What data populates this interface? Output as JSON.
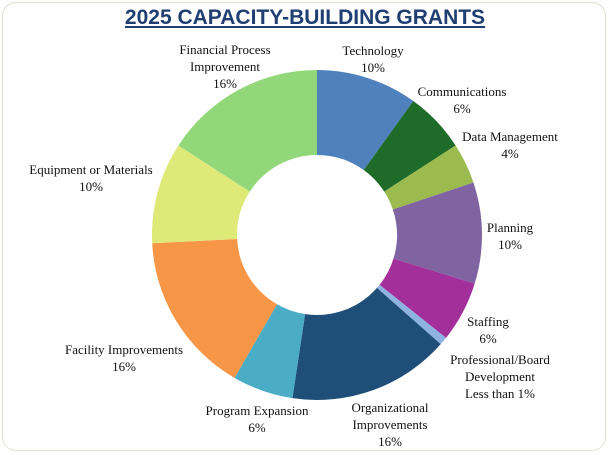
{
  "chart_data": {
    "type": "donut",
    "title": "2025 CAPACITY-BUILDING GRANTS",
    "categories": [
      "Technology",
      "Communications",
      "Data Management",
      "Planning",
      "Staffing",
      "Professional/Board Development",
      "Organizational Improvements",
      "Program Expansion",
      "Facility Improvements",
      "Equipment or Materials",
      "Financial Process Improvement"
    ],
    "values": [
      10,
      6,
      4,
      10,
      6,
      0.8,
      16,
      6,
      16,
      10,
      16
    ],
    "value_labels": [
      "10%",
      "6%",
      "4%",
      "10%",
      "6%",
      "Less than 1%",
      "16%",
      "6%",
      "16%",
      "10%",
      "16%"
    ],
    "colors": [
      "#4f81bd",
      "#1e6b2a",
      "#9bbb4f",
      "#8064a2",
      "#a3309a",
      "#8db3e2",
      "#1f4e79",
      "#4bacc6",
      "#f79646",
      "#dfe978",
      "#92d87a"
    ]
  }
}
